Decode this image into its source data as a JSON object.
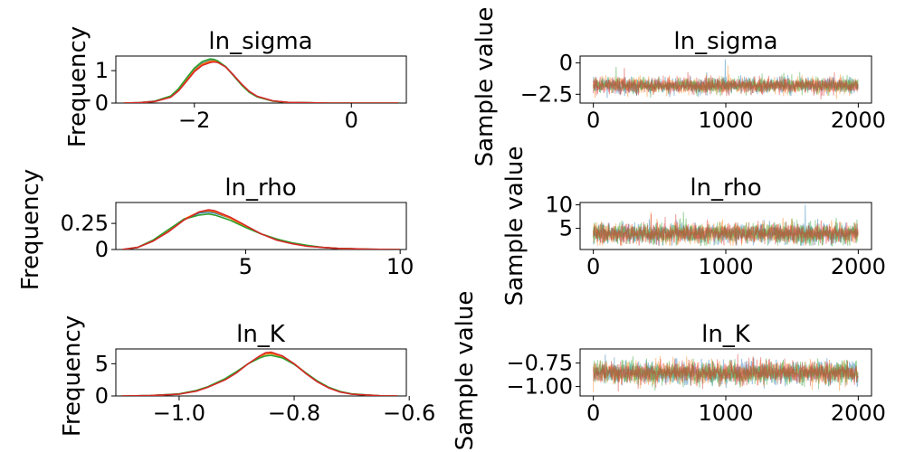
{
  "colors": {
    "chain_1": "#1f77b4",
    "chain_2": "#ff7f0e",
    "chain_3": "#2ca02c",
    "chain_4": "#d62728"
  },
  "chart_data": [
    {
      "type": "line",
      "panel": "ln_sigma-density",
      "title": "ln_sigma",
      "xlabel": "",
      "ylabel": "Frequency",
      "xlim": [
        -3.0,
        0.7
      ],
      "ylim": [
        0,
        1.45
      ],
      "xticks": [
        -2,
        0
      ],
      "yticks": [
        0,
        1
      ],
      "x": [
        -2.9,
        -2.7,
        -2.5,
        -2.3,
        -2.2,
        -2.1,
        -2.0,
        -1.9,
        -1.8,
        -1.75,
        -1.7,
        -1.6,
        -1.5,
        -1.4,
        -1.3,
        -1.2,
        -1.0,
        -0.8,
        -0.6,
        -0.3,
        0.0,
        0.3,
        0.6
      ],
      "series": [
        {
          "color": "#1f77b4",
          "values": [
            0.0,
            0.01,
            0.05,
            0.2,
            0.42,
            0.72,
            1.02,
            1.22,
            1.31,
            1.32,
            1.28,
            1.12,
            0.86,
            0.58,
            0.35,
            0.2,
            0.06,
            0.02,
            0.01,
            0.0,
            0.0,
            0.0,
            0.0
          ]
        },
        {
          "color": "#ff7f0e",
          "values": [
            0.0,
            0.01,
            0.05,
            0.19,
            0.4,
            0.7,
            1.0,
            1.2,
            1.29,
            1.3,
            1.27,
            1.11,
            0.85,
            0.58,
            0.35,
            0.2,
            0.06,
            0.02,
            0.01,
            0.0,
            0.0,
            0.0,
            0.0
          ]
        },
        {
          "color": "#2ca02c",
          "values": [
            0.0,
            0.01,
            0.06,
            0.22,
            0.45,
            0.77,
            1.08,
            1.28,
            1.36,
            1.35,
            1.3,
            1.12,
            0.84,
            0.56,
            0.33,
            0.19,
            0.06,
            0.02,
            0.01,
            0.0,
            0.0,
            0.0,
            0.0
          ]
        },
        {
          "color": "#d62728",
          "values": [
            0.0,
            0.01,
            0.05,
            0.18,
            0.38,
            0.67,
            0.97,
            1.16,
            1.25,
            1.27,
            1.25,
            1.11,
            0.86,
            0.59,
            0.36,
            0.21,
            0.07,
            0.02,
            0.01,
            0.0,
            0.0,
            0.0,
            0.0
          ]
        }
      ]
    },
    {
      "type": "line",
      "panel": "ln_sigma-trace",
      "title": "ln_sigma",
      "xlabel": "",
      "ylabel": "Sample value",
      "xlim": [
        -100,
        2100
      ],
      "ylim": [
        -3.2,
        0.55
      ],
      "xticks": [
        0,
        1000,
        2000
      ],
      "yticks": [
        0.0,
        -2.5
      ],
      "n_samples": 2000,
      "series": [
        {
          "color": "#1f77b4",
          "mean": -1.8,
          "sd": 0.32,
          "min": -2.9,
          "max": 0.3
        },
        {
          "color": "#ff7f0e",
          "mean": -1.8,
          "sd": 0.32,
          "min": -2.9,
          "max": -0.2
        },
        {
          "color": "#2ca02c",
          "mean": -1.8,
          "sd": 0.3,
          "min": -2.9,
          "max": -0.3
        },
        {
          "color": "#d62728",
          "mean": -1.8,
          "sd": 0.32,
          "min": -2.9,
          "max": -0.4
        }
      ]
    },
    {
      "type": "line",
      "panel": "ln_rho-density",
      "title": "ln_rho",
      "xlabel": "",
      "ylabel": "Frequency",
      "xlim": [
        0.8,
        10.2
      ],
      "ylim": [
        0,
        0.45
      ],
      "xticks": [
        5,
        10
      ],
      "yticks": [
        0.0,
        0.25
      ],
      "x": [
        1.0,
        1.5,
        2.0,
        2.5,
        3.0,
        3.5,
        3.8,
        4.0,
        4.5,
        5.0,
        5.5,
        6.0,
        6.5,
        7.0,
        7.5,
        8.0,
        9.0,
        10.0
      ],
      "series": [
        {
          "color": "#1f77b4",
          "values": [
            0.0,
            0.02,
            0.08,
            0.18,
            0.29,
            0.35,
            0.36,
            0.35,
            0.3,
            0.22,
            0.15,
            0.1,
            0.06,
            0.035,
            0.02,
            0.01,
            0.003,
            0.0
          ]
        },
        {
          "color": "#ff7f0e",
          "values": [
            0.0,
            0.02,
            0.08,
            0.18,
            0.29,
            0.36,
            0.37,
            0.36,
            0.3,
            0.22,
            0.15,
            0.1,
            0.06,
            0.035,
            0.02,
            0.01,
            0.003,
            0.0
          ]
        },
        {
          "color": "#2ca02c",
          "values": [
            0.0,
            0.02,
            0.09,
            0.19,
            0.29,
            0.33,
            0.34,
            0.33,
            0.28,
            0.21,
            0.15,
            0.1,
            0.065,
            0.04,
            0.02,
            0.01,
            0.003,
            0.0
          ]
        },
        {
          "color": "#d62728",
          "values": [
            0.0,
            0.02,
            0.08,
            0.17,
            0.28,
            0.36,
            0.38,
            0.37,
            0.31,
            0.23,
            0.15,
            0.09,
            0.055,
            0.03,
            0.02,
            0.01,
            0.003,
            0.0
          ]
        }
      ]
    },
    {
      "type": "line",
      "panel": "ln_rho-trace",
      "title": "ln_rho",
      "xlabel": "",
      "ylabel": "Sample value",
      "xlim": [
        -100,
        2100
      ],
      "ylim": [
        0.5,
        10.5
      ],
      "xticks": [
        0,
        1000,
        2000
      ],
      "yticks": [
        5,
        10
      ],
      "n_samples": 2000,
      "series": [
        {
          "color": "#1f77b4",
          "mean": 3.9,
          "sd": 1.1,
          "min": 1.3,
          "max": 10.0
        },
        {
          "color": "#ff7f0e",
          "mean": 3.9,
          "sd": 1.1,
          "min": 1.3,
          "max": 8.5
        },
        {
          "color": "#2ca02c",
          "mean": 3.9,
          "sd": 1.15,
          "min": 1.3,
          "max": 8.5
        },
        {
          "color": "#d62728",
          "mean": 3.9,
          "sd": 1.05,
          "min": 1.3,
          "max": 8.0
        }
      ]
    },
    {
      "type": "line",
      "panel": "ln_K-density",
      "title": "ln_K",
      "xlabel": "",
      "ylabel": "Frequency",
      "xlim": [
        -1.11,
        -0.605
      ],
      "ylim": [
        0,
        7.3
      ],
      "xticks": [
        -1.0,
        -0.8,
        -0.6
      ],
      "xtick_labels": [
        "−1.0",
        "−0.8",
        "−0.6"
      ],
      "yticks": [
        0,
        5
      ],
      "x": [
        -1.1,
        -1.05,
        -1.0,
        -0.97,
        -0.95,
        -0.92,
        -0.9,
        -0.88,
        -0.86,
        -0.85,
        -0.84,
        -0.82,
        -0.8,
        -0.78,
        -0.76,
        -0.74,
        -0.72,
        -0.7,
        -0.65,
        -0.62
      ],
      "series": [
        {
          "color": "#1f77b4",
          "values": [
            0.0,
            0.05,
            0.3,
            0.8,
            1.4,
            2.6,
            3.7,
            5.0,
            6.1,
            6.5,
            6.6,
            6.1,
            5.0,
            3.6,
            2.3,
            1.3,
            0.65,
            0.3,
            0.03,
            0.0
          ]
        },
        {
          "color": "#ff7f0e",
          "values": [
            0.0,
            0.05,
            0.3,
            0.8,
            1.4,
            2.6,
            3.7,
            5.0,
            6.1,
            6.5,
            6.6,
            6.1,
            5.0,
            3.6,
            2.3,
            1.3,
            0.65,
            0.3,
            0.03,
            0.0
          ]
        },
        {
          "color": "#2ca02c",
          "values": [
            0.0,
            0.05,
            0.32,
            0.85,
            1.45,
            2.7,
            3.8,
            5.0,
            5.9,
            6.2,
            6.3,
            5.9,
            4.9,
            3.6,
            2.35,
            1.35,
            0.7,
            0.32,
            0.03,
            0.0
          ]
        },
        {
          "color": "#d62728",
          "values": [
            0.0,
            0.05,
            0.28,
            0.75,
            1.35,
            2.5,
            3.6,
            5.0,
            6.2,
            6.7,
            6.8,
            6.2,
            5.0,
            3.5,
            2.2,
            1.25,
            0.6,
            0.28,
            0.03,
            0.0
          ]
        }
      ]
    },
    {
      "type": "line",
      "panel": "ln_K-trace",
      "title": "ln_K",
      "xlabel": "",
      "ylabel": "Sample value",
      "xlim": [
        -100,
        2100
      ],
      "ylim": [
        -1.1,
        -0.6
      ],
      "xticks": [
        0,
        1000,
        2000
      ],
      "yticks": [
        -0.75,
        -1.0
      ],
      "ytick_labels": [
        "−0.75",
        "−1.00"
      ],
      "n_samples": 2000,
      "series": [
        {
          "color": "#1f77b4",
          "mean": -0.855,
          "sd": 0.06,
          "min": -1.06,
          "max": -0.66
        },
        {
          "color": "#ff7f0e",
          "mean": -0.855,
          "sd": 0.06,
          "min": -1.06,
          "max": -0.68
        },
        {
          "color": "#2ca02c",
          "mean": -0.855,
          "sd": 0.062,
          "min": -1.06,
          "max": -0.68
        },
        {
          "color": "#d62728",
          "mean": -0.855,
          "sd": 0.058,
          "min": -1.06,
          "max": -0.68
        }
      ]
    }
  ]
}
